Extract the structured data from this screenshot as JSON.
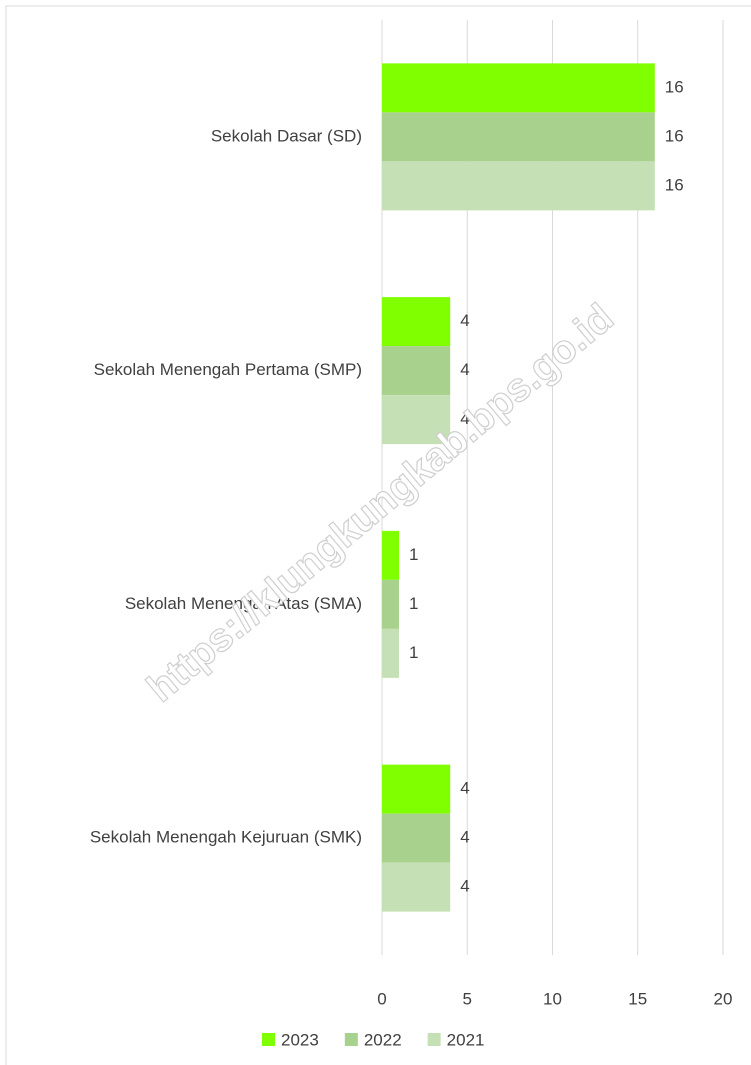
{
  "chart_data": {
    "type": "bar",
    "orientation": "horizontal",
    "categories": [
      "Sekolah Dasar (SD)",
      "Sekolah Menengah Pertama (SMP)",
      "Sekolah Menengah Atas (SMA)",
      "Sekolah Menengah Kejuruan (SMK)"
    ],
    "series": [
      {
        "name": "2023",
        "color": "#80ff00",
        "values": [
          16,
          4,
          1,
          4
        ]
      },
      {
        "name": "2022",
        "color": "#a9d18e",
        "values": [
          16,
          4,
          1,
          4
        ]
      },
      {
        "name": "2021",
        "color": "#c5e0b4",
        "values": [
          16,
          4,
          1,
          4
        ]
      }
    ],
    "xlim": [
      0,
      20
    ],
    "xticks": [
      0,
      5,
      10,
      15,
      20
    ],
    "grid": true,
    "legend": "bottom",
    "watermark": "https://klungkungkab.bps.go.id"
  }
}
